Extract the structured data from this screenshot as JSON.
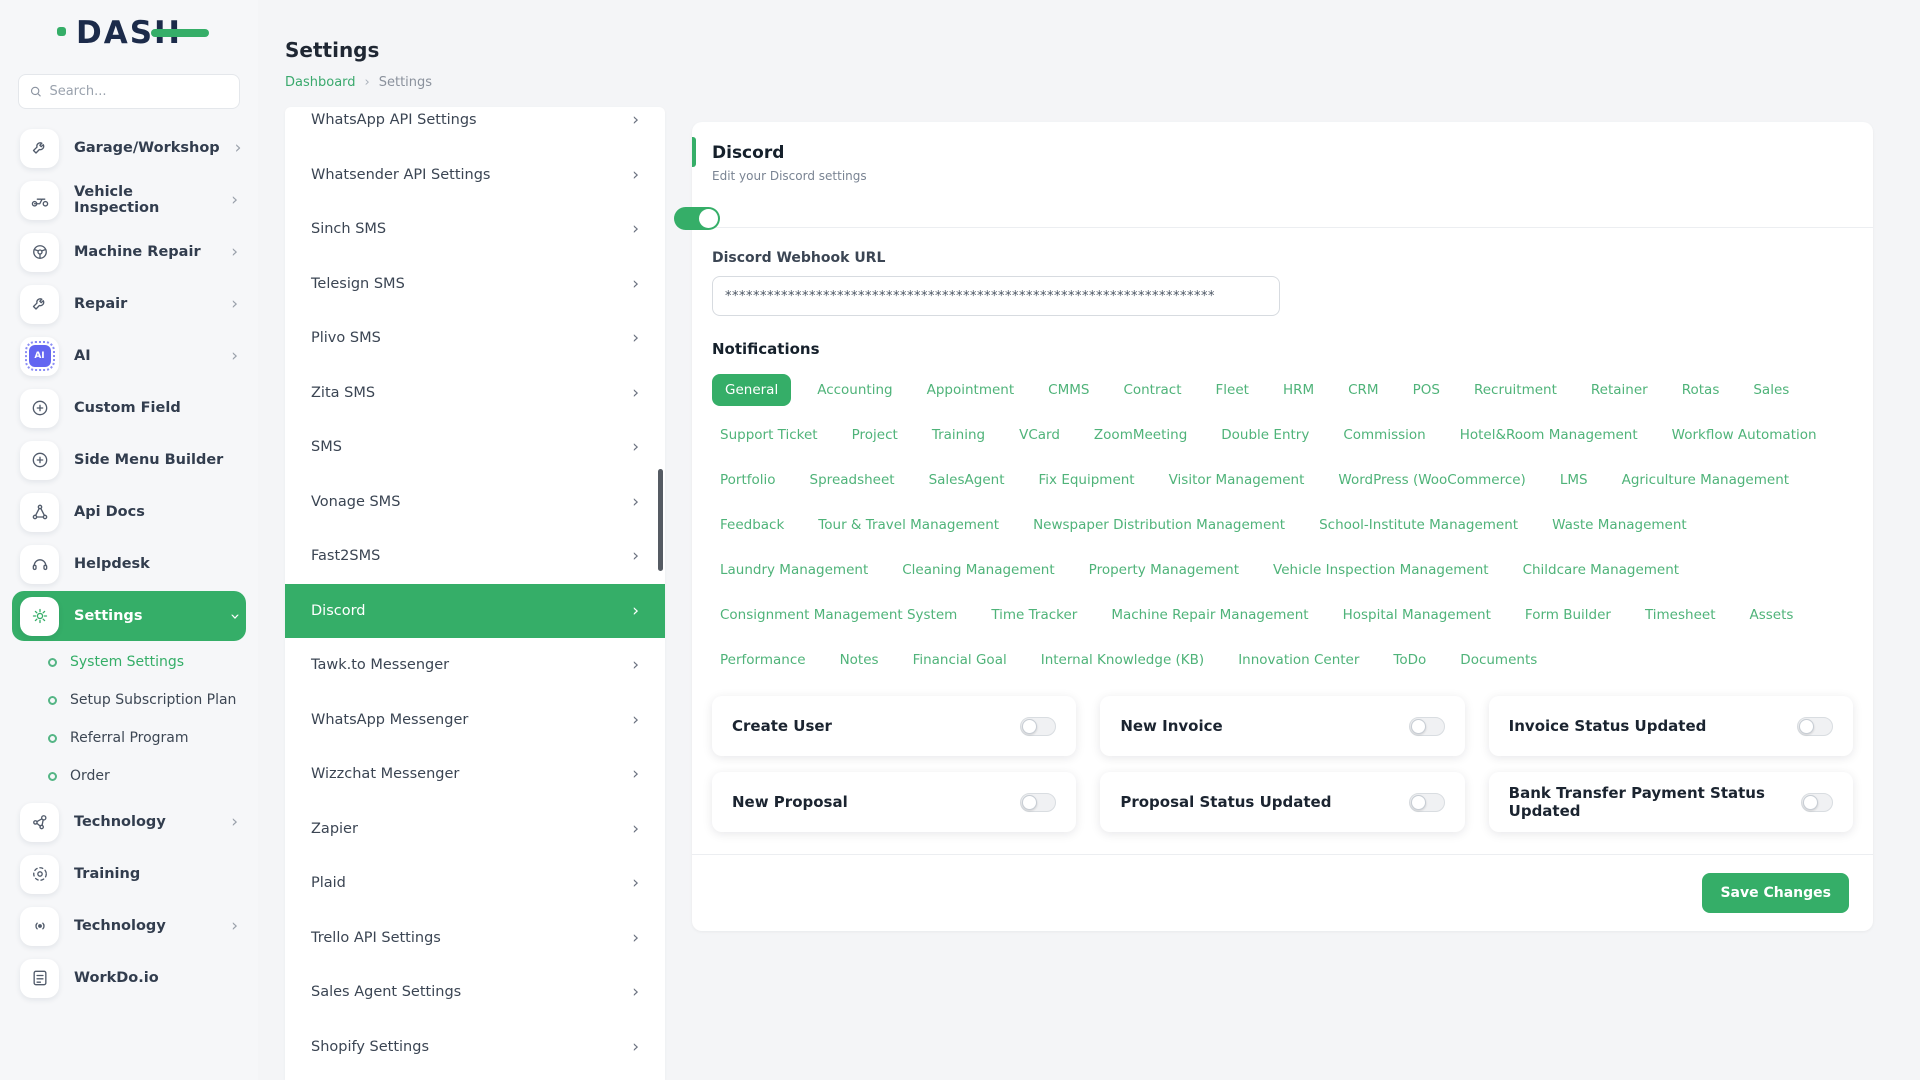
{
  "app": {
    "logo_text": "DASH",
    "accent_color": "#35ae68"
  },
  "sidebar": {
    "search_placeholder": "Search...",
    "items": [
      {
        "label": "Garage/Workshop",
        "icon": "wrench-icon",
        "chevron": true,
        "active": false
      },
      {
        "label": "Vehicle Inspection",
        "icon": "motorcycle-icon",
        "chevron": true,
        "active": false
      },
      {
        "label": "Machine Repair",
        "icon": "steering-icon",
        "chevron": true,
        "active": false
      },
      {
        "label": "Repair",
        "icon": "wrench-icon",
        "chevron": true,
        "active": false
      },
      {
        "label": "AI",
        "icon": "ai-chip-icon",
        "chevron": true,
        "active": false
      },
      {
        "label": "Custom Field",
        "icon": "plus-circle-icon",
        "chevron": false,
        "active": false
      },
      {
        "label": "Side Menu Builder",
        "icon": "plus-circle-icon",
        "chevron": false,
        "active": false
      },
      {
        "label": "Api Docs",
        "icon": "api-icon",
        "chevron": false,
        "active": false
      },
      {
        "label": "Helpdesk",
        "icon": "headset-icon",
        "chevron": false,
        "active": false
      },
      {
        "label": "Settings",
        "icon": "gear-icon",
        "chevron": true,
        "active": true,
        "children": [
          {
            "label": "System Settings",
            "active": true
          },
          {
            "label": "Setup Subscription Plan",
            "active": false
          },
          {
            "label": "Referral Program",
            "active": false
          },
          {
            "label": "Order",
            "active": false
          }
        ]
      },
      {
        "label": "Technology",
        "icon": "hub-icon",
        "chevron": true,
        "active": false
      },
      {
        "label": "Training",
        "icon": "target-icon",
        "chevron": false,
        "active": false
      },
      {
        "label": "Technology",
        "icon": "broadcast-icon",
        "chevron": true,
        "active": false
      },
      {
        "label": "WorkDo.io",
        "icon": "document-icon",
        "chevron": false,
        "active": false
      }
    ]
  },
  "header": {
    "title": "Settings",
    "breadcrumb": {
      "link": "Dashboard",
      "current": "Settings"
    }
  },
  "settings_nav": {
    "items": [
      "WhatsApp API Settings",
      "Whatsender API Settings",
      "Sinch SMS",
      "Telesign SMS",
      "Plivo SMS",
      "Zita SMS",
      "SMS",
      "Vonage SMS",
      "Fast2SMS",
      "Discord",
      "Tawk.to Messenger",
      "WhatsApp Messenger",
      "Wizzchat Messenger",
      "Zapier",
      "Plaid",
      "Trello API Settings",
      "Sales Agent Settings",
      "Shopify Settings"
    ],
    "active_item": "Discord"
  },
  "panel": {
    "title": "Discord",
    "subtitle": "Edit your Discord settings",
    "enabled": true,
    "webhook": {
      "label": "Discord Webhook URL",
      "value": "**********************************************************************"
    },
    "notifications_title": "Notifications",
    "active_tab": "General",
    "tabs": [
      "General",
      "Accounting",
      "Appointment",
      "CMMS",
      "Contract",
      "Fleet",
      "HRM",
      "CRM",
      "POS",
      "Recruitment",
      "Retainer",
      "Rotas",
      "Sales",
      "Support Ticket",
      "Project",
      "Training",
      "VCard",
      "ZoomMeeting",
      "Double Entry",
      "Commission",
      "Hotel&Room Management",
      "Workflow Automation",
      "Portfolio",
      "Spreadsheet",
      "SalesAgent",
      "Fix Equipment",
      "Visitor Management",
      "WordPress (WooCommerce)",
      "LMS",
      "Agriculture Management",
      "Feedback",
      "Tour & Travel Management",
      "Newspaper Distribution Management",
      "School-Institute Management",
      "Waste Management",
      "Laundry Management",
      "Cleaning Management",
      "Property Management",
      "Vehicle Inspection Management",
      "Childcare Management",
      "Consignment Management System",
      "Time Tracker",
      "Machine Repair Management",
      "Hospital Management",
      "Form Builder",
      "Timesheet",
      "Assets",
      "Performance",
      "Notes",
      "Financial Goal",
      "Internal Knowledge (KB)",
      "Innovation Center",
      "ToDo",
      "Documents"
    ],
    "toggle_cards": [
      {
        "label": "Create User",
        "on": false
      },
      {
        "label": "New Invoice",
        "on": false
      },
      {
        "label": "Invoice Status Updated",
        "on": false
      },
      {
        "label": "New Proposal",
        "on": false
      },
      {
        "label": "Proposal Status Updated",
        "on": false
      },
      {
        "label": "Bank Transfer Payment Status Updated",
        "on": false
      }
    ],
    "save_label": "Save Changes"
  }
}
